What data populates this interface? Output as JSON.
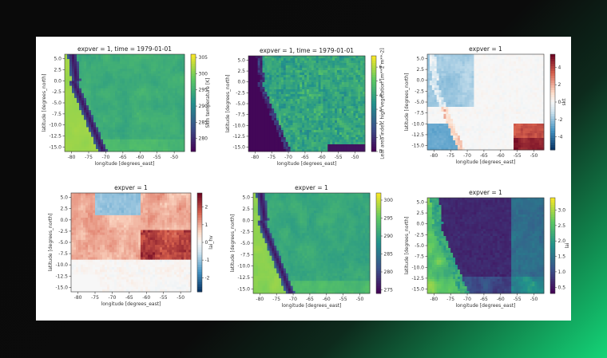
{
  "chart_data": [
    {
      "type": "heatmap",
      "title": "expver = 1, time = 1979-01-01",
      "xlabel": "longitude [degrees_east]",
      "ylabel": "latitude [degrees_north]",
      "cbar_label": "Skin temperature [K]",
      "xticks": [
        "-80",
        "-75",
        "-70",
        "-65",
        "-60",
        "-55",
        "-50"
      ],
      "yticks": [
        "5.0",
        "2.5",
        "0.0",
        "-2.5",
        "-5.0",
        "-7.5",
        "-10.0",
        "-12.5",
        "-15.0"
      ],
      "cbar_ticks": [
        "305",
        "300",
        "295",
        "290",
        "285",
        "280"
      ],
      "xlim": [
        -82,
        -47
      ],
      "ylim": [
        -16,
        6
      ],
      "vmin": 276,
      "vmax": 306,
      "colormap": "viridis"
    },
    {
      "type": "heatmap",
      "title": "expver = 1, time = 1979-01-01",
      "xlabel": "longitude [degrees_east]",
      "ylabel": "latitude [degrees_north]",
      "cbar_label": "Leaf area index, high vegetation [m**2 m**-2]",
      "xticks": [
        "-80",
        "-75",
        "-70",
        "-65",
        "-60",
        "-55",
        "-50"
      ],
      "yticks": [
        "5.0",
        "2.5",
        "0.0",
        "-2.5",
        "-5.0",
        "-7.5",
        "-10.0",
        "-12.5",
        "-15.0"
      ],
      "cbar_ticks": [
        "6",
        "5",
        "4",
        "3",
        "2",
        "1",
        "0"
      ],
      "xlim": [
        -82,
        -47
      ],
      "ylim": [
        -16,
        6
      ],
      "vmin": 0,
      "vmax": 6.8,
      "colormap": "viridis"
    },
    {
      "type": "heatmap",
      "title": "expver = 1",
      "xlabel": "longitude [degrees_east]",
      "ylabel": "latitude [degrees_north]",
      "cbar_label": "skt",
      "xticks": [
        "-80",
        "-75",
        "-70",
        "-65",
        "-60",
        "-55",
        "-50"
      ],
      "yticks": [
        "5.0",
        "2.5",
        "0.0",
        "-2.5",
        "-5.0",
        "-7.5",
        "-10.0",
        "-12.5",
        "-15.0"
      ],
      "cbar_ticks": [
        "4",
        "2",
        "0",
        "-2",
        "-4"
      ],
      "xlim": [
        -82,
        -47
      ],
      "ylim": [
        -16,
        6
      ],
      "vmin": -5.5,
      "vmax": 5.5,
      "colormap": "RdBu_r"
    },
    {
      "type": "heatmap",
      "title": "expver = 1",
      "xlabel": "longitude [degrees_east]",
      "ylabel": "latitude [degrees_north]",
      "cbar_label": "lai_hv",
      "xticks": [
        "-80",
        "-75",
        "-70",
        "-65",
        "-60",
        "-55",
        "-50"
      ],
      "yticks": [
        "5.0",
        "2.5",
        "0.0",
        "-2.5",
        "-5.0",
        "-7.5",
        "-10.0",
        "-12.5",
        "-15.0"
      ],
      "cbar_ticks": [
        "2",
        "1",
        "0",
        "-1",
        "-2"
      ],
      "xlim": [
        -82,
        -47
      ],
      "ylim": [
        -16,
        6
      ],
      "vmin": -2.8,
      "vmax": 2.8,
      "colormap": "RdBu_r"
    },
    {
      "type": "heatmap",
      "title": "expver = 1",
      "xlabel": "longitude [degrees_east]",
      "ylabel": "latitude [degrees_north]",
      "cbar_label": "",
      "xticks": [
        "-80",
        "-75",
        "-70",
        "-65",
        "-60",
        "-55",
        "-50"
      ],
      "yticks": [
        "5.0",
        "2.5",
        "0.0",
        "-2.5",
        "-5.0",
        "-7.5",
        "-10.0",
        "-12.5",
        "-15.0"
      ],
      "cbar_ticks": [
        "300",
        "295",
        "290",
        "285",
        "280",
        "275"
      ],
      "xlim": [
        -82,
        -47
      ],
      "ylim": [
        -16,
        6
      ],
      "vmin": 274,
      "vmax": 302,
      "colormap": "viridis"
    },
    {
      "type": "heatmap",
      "title": "expver = 1",
      "xlabel": "longitude [degrees_east]",
      "ylabel": "latitude [degrees_north]",
      "cbar_label": "lai",
      "xticks": [
        "-80",
        "-75",
        "-70",
        "-65",
        "-60",
        "-55",
        "-50"
      ],
      "yticks": [
        "5.0",
        "2.5",
        "0.0",
        "-2.5",
        "-5.0",
        "-7.5",
        "-10.0",
        "-12.5",
        "-15.0"
      ],
      "cbar_ticks": [
        "3.0",
        "2.5",
        "2.0",
        "1.5",
        "1.0",
        "0.5"
      ],
      "xlim": [
        -82,
        -47
      ],
      "ylim": [
        -16,
        6
      ],
      "vmin": 0.3,
      "vmax": 3.4,
      "colormap": "viridis"
    }
  ]
}
